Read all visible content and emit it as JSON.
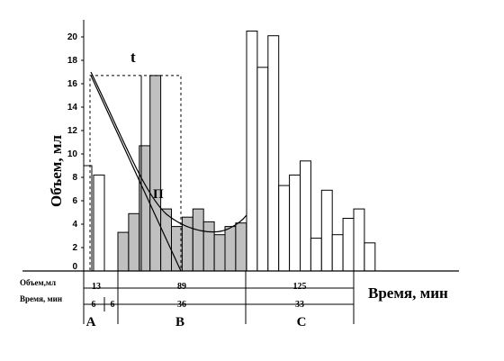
{
  "chart_data": {
    "type": "bar",
    "ylabel": "Объем, мл",
    "xlabel": "Время, мин",
    "ylim": [
      0,
      21
    ],
    "yticks": [
      0,
      2,
      4,
      6,
      8,
      10,
      12,
      14,
      16,
      18,
      20
    ],
    "grid": false,
    "series": [
      {
        "group": "A",
        "fill": "#ffffff",
        "values": [
          9.0,
          8.2
        ]
      },
      {
        "group": "B",
        "fill": "#c0c0c0",
        "values": [
          3.3,
          4.9,
          10.7,
          16.7,
          5.3,
          3.8,
          4.6,
          5.3,
          4.2,
          3.1,
          3.8,
          4.1
        ]
      },
      {
        "group": "C",
        "fill": "#ffffff",
        "values": [
          20.5,
          17.4,
          20.1,
          7.3,
          8.2,
          9.4,
          2.8,
          6.9,
          3.1,
          4.5,
          5.3,
          2.4
        ]
      }
    ],
    "annotations": {
      "t_label": "t",
      "p_label": "П"
    },
    "table": {
      "rows": [
        {
          "label": "Объем,мл",
          "cells": [
            "13",
            "89",
            "125"
          ]
        },
        {
          "label": "Время, мин",
          "cells": [
            "6",
            "6",
            "36",
            "33"
          ]
        }
      ],
      "segments": [
        "A",
        "B",
        "C"
      ]
    },
    "colors": {
      "ink": "#000000",
      "shaded_bar": "#c0c0c0",
      "open_bar": "#ffffff"
    }
  }
}
